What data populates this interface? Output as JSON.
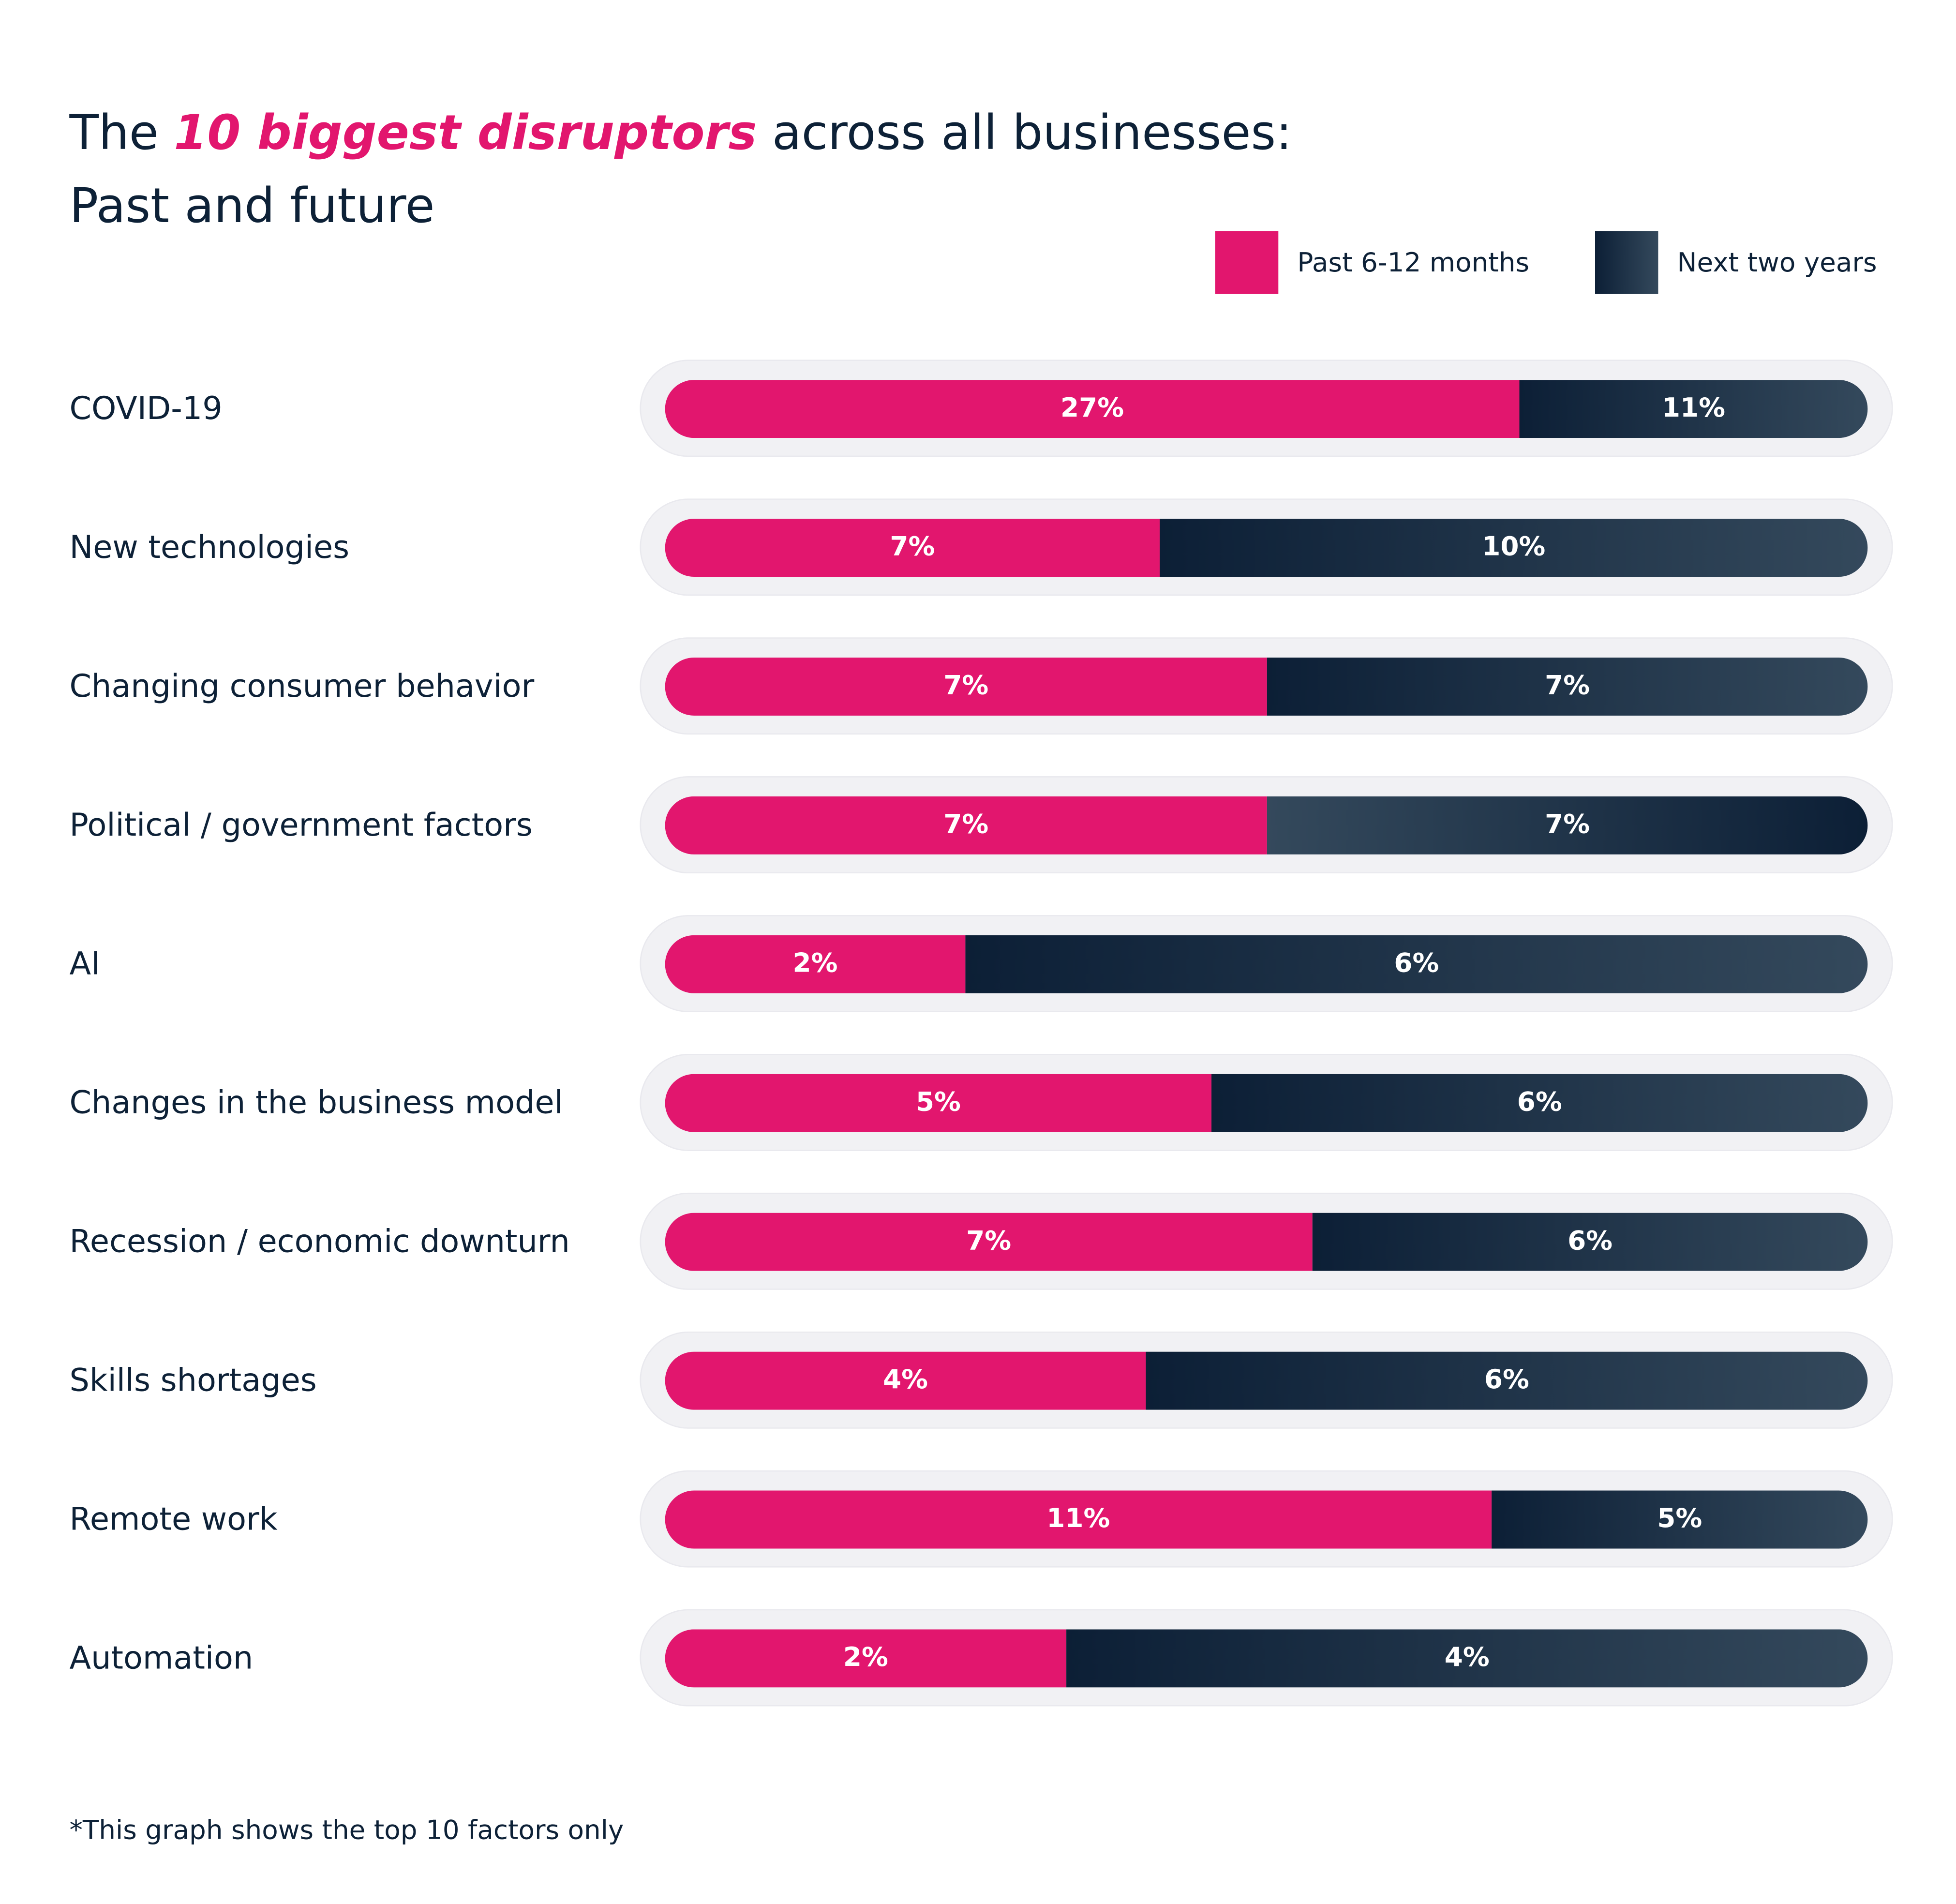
{
  "title": {
    "prefix": "The ",
    "highlight": "10 biggest disruptors",
    "suffix": " across all businesses:",
    "line2": "Past and future"
  },
  "colors": {
    "past": "#e2166e",
    "next_dark": "#0c1f36",
    "next_light": "#34495c",
    "text": "#0d2137"
  },
  "footnote": "*This graph shows the top 10 factors only",
  "chart_data": {
    "type": "bar",
    "orientation": "horizontal",
    "stacked": true,
    "normalized": true,
    "legend_position": "top-right",
    "series": [
      {
        "name": "Past 6-12 months",
        "values": [
          27,
          7,
          7,
          7,
          2,
          5,
          7,
          4,
          11,
          2
        ],
        "labels": [
          "27%",
          "7%",
          "7%",
          "7%",
          "2%",
          "5%",
          "7%",
          "4%",
          "11%",
          "2%"
        ]
      },
      {
        "name": "Next two years",
        "values": [
          11,
          10,
          7,
          7,
          6,
          6,
          6,
          6,
          5,
          4
        ],
        "labels": [
          "11%",
          "10%",
          "7%",
          "7%",
          "6%",
          "6%",
          "6%",
          "6%",
          "5%",
          "4%"
        ]
      }
    ],
    "categories": [
      "COVID-19",
      "New technologies",
      "Changing consumer behavior",
      "Political / government factors",
      "AI",
      "Changes in the business model",
      "Recession / economic downturn",
      "Skills shortages",
      "Remote work",
      "Automation"
    ]
  }
}
